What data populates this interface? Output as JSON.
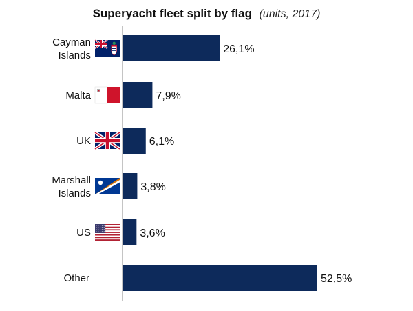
{
  "chart_data": {
    "type": "bar",
    "orientation": "horizontal",
    "title": "Superyacht fleet split by flag",
    "subtitle": "(units, 2017)",
    "categories": [
      [
        "Cayman",
        "Islands"
      ],
      [
        "Malta"
      ],
      [
        "UK"
      ],
      [
        "Marshall",
        "Islands"
      ],
      [
        "US"
      ],
      [
        "Other"
      ]
    ],
    "flags": [
      "cayman-islands-flag-icon",
      "malta-flag-icon",
      "uk-flag-icon",
      "marshall-islands-flag-icon",
      "us-flag-icon",
      null
    ],
    "values": [
      26.1,
      7.9,
      6.1,
      3.8,
      3.6,
      52.5
    ],
    "value_labels": [
      "26,1%",
      "7,9%",
      "6,1%",
      "3,8%",
      "3,6%",
      "52,5%"
    ],
    "xlim": [
      0,
      60
    ],
    "grid": false,
    "legend": "none",
    "colors": {
      "bar": "#0d2a5b",
      "axis": "#8a8a8a",
      "malta_red": "#cf142b",
      "uk_blue": "#012169",
      "uk_red": "#c8102e",
      "us_red": "#b22234",
      "us_blue": "#3c3b6e",
      "marshall_blue": "#003893",
      "marshall_orange": "#dd7500"
    }
  }
}
